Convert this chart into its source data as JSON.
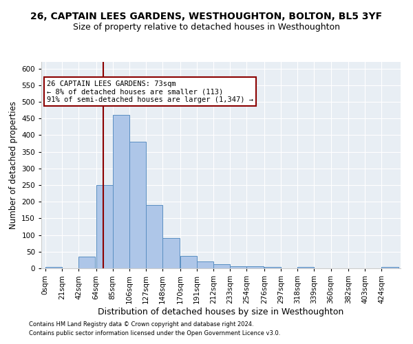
{
  "title": "26, CAPTAIN LEES GARDENS, WESTHOUGHTON, BOLTON, BL5 3YF",
  "subtitle": "Size of property relative to detached houses in Westhoughton",
  "xlabel": "Distribution of detached houses by size in Westhoughton",
  "ylabel": "Number of detached properties",
  "bin_labels": [
    "0sqm",
    "21sqm",
    "42sqm",
    "64sqm",
    "85sqm",
    "106sqm",
    "127sqm",
    "148sqm",
    "170sqm",
    "191sqm",
    "212sqm",
    "233sqm",
    "254sqm",
    "276sqm",
    "297sqm",
    "318sqm",
    "339sqm",
    "360sqm",
    "382sqm",
    "403sqm",
    "424sqm"
  ],
  "bar_values": [
    5,
    0,
    35,
    250,
    460,
    380,
    190,
    90,
    38,
    20,
    12,
    7,
    6,
    5,
    0,
    5,
    0,
    0,
    0,
    0,
    5
  ],
  "bar_color": "#aec6e8",
  "bar_edge_color": "#5a8fc2",
  "vline_x": 73,
  "vline_color": "#8b0000",
  "annotation_text": "26 CAPTAIN LEES GARDENS: 73sqm\n← 8% of detached houses are smaller (113)\n91% of semi-detached houses are larger (1,347) →",
  "annotation_box_color": "white",
  "annotation_box_edge": "#8b0000",
  "ylim": [
    0,
    620
  ],
  "yticks": [
    0,
    50,
    100,
    150,
    200,
    250,
    300,
    350,
    400,
    450,
    500,
    550,
    600
  ],
  "footer1": "Contains HM Land Registry data © Crown copyright and database right 2024.",
  "footer2": "Contains public sector information licensed under the Open Government Licence v3.0.",
  "title_fontsize": 10,
  "subtitle_fontsize": 9,
  "tick_fontsize": 7.5,
  "ylabel_fontsize": 8.5,
  "xlabel_fontsize": 9,
  "annotation_fontsize": 7.5,
  "footer_fontsize": 6,
  "bin_width": 21,
  "bin_starts": [
    0,
    21,
    42,
    64,
    85,
    106,
    127,
    148,
    170,
    191,
    212,
    233,
    254,
    276,
    297,
    318,
    339,
    360,
    382,
    403,
    424
  ],
  "bg_color": "#e8eef4",
  "grid_color": "white"
}
